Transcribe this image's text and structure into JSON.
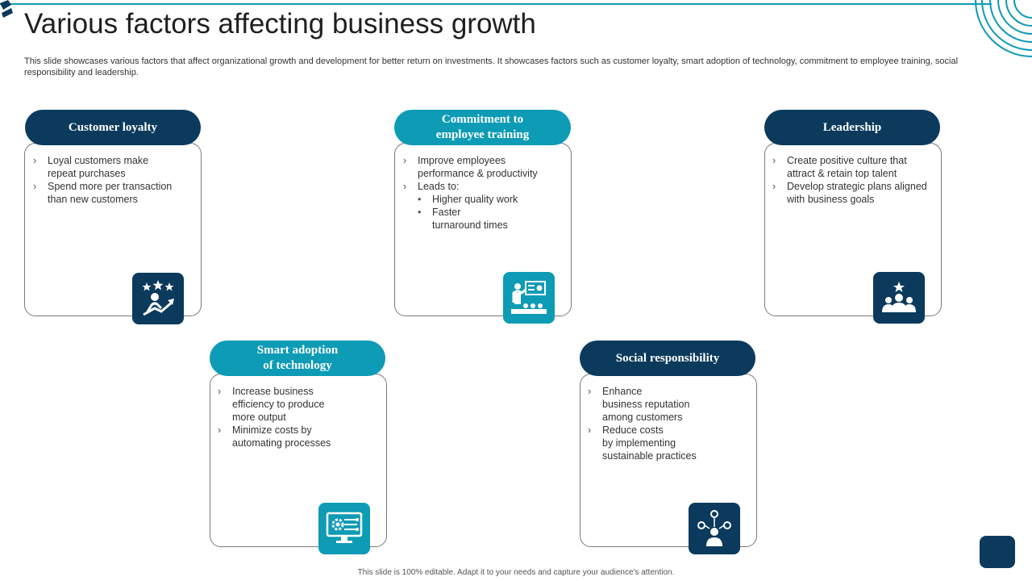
{
  "slide": {
    "title": "Various factors affecting business growth",
    "description": "This slide showcases various factors that affect organizational growth and development for better return on investments. It showcases factors such as customer loyalty, smart adoption of technology, commitment to employee training, social responsibility and leadership.",
    "footer": "This slide is 100% editable. Adapt it to your needs and capture your audience's attention."
  },
  "colors": {
    "dark": "#0b3a5d",
    "teal": "#0e9bb5"
  },
  "cards": [
    {
      "title": [
        "Customer loyalty"
      ],
      "items": [
        {
          "text": [
            "Loyal customers make",
            "repeat purchases"
          ]
        },
        {
          "text": [
            "Spend more per transaction",
            "than new customers"
          ]
        }
      ],
      "icon": "customer-loyalty-icon"
    },
    {
      "title": [
        "Commitment to",
        "employee training"
      ],
      "items": [
        {
          "text": [
            "Improve  employees",
            "performance  & productivity"
          ]
        },
        {
          "text": [
            "Leads to:"
          ]
        },
        {
          "text": [
            "Higher quality work"
          ]
        },
        {
          "text": [
            "Faster",
            "turnaround  times"
          ]
        }
      ],
      "icon": "training-presentation-icon"
    },
    {
      "title": [
        "Leadership"
      ],
      "items": [
        {
          "text": [
            "Create positive culture that",
            "attract & retain top talent"
          ]
        },
        {
          "text": [
            "Develop  strategic plans aligned",
            "with business goals"
          ]
        }
      ],
      "icon": "team-leader-icon"
    },
    {
      "title": [
        "Smart adoption",
        "of technology"
      ],
      "items": [
        {
          "text": [
            "Increase business",
            "efficiency to produce",
            "more output"
          ]
        },
        {
          "text": [
            "Minimize costs by",
            "automating processes"
          ]
        }
      ],
      "icon": "monitor-gear-icon"
    },
    {
      "title": [
        "Social responsibility"
      ],
      "items": [
        {
          "text": [
            "Enhance",
            "business reputation",
            "among customers"
          ]
        },
        {
          "text": [
            "Reduce costs",
            "by implementing",
            "sustainable practices"
          ]
        }
      ],
      "icon": "person-network-icon"
    }
  ],
  "markers": {
    "chevron": "›",
    "bullet": "•"
  }
}
